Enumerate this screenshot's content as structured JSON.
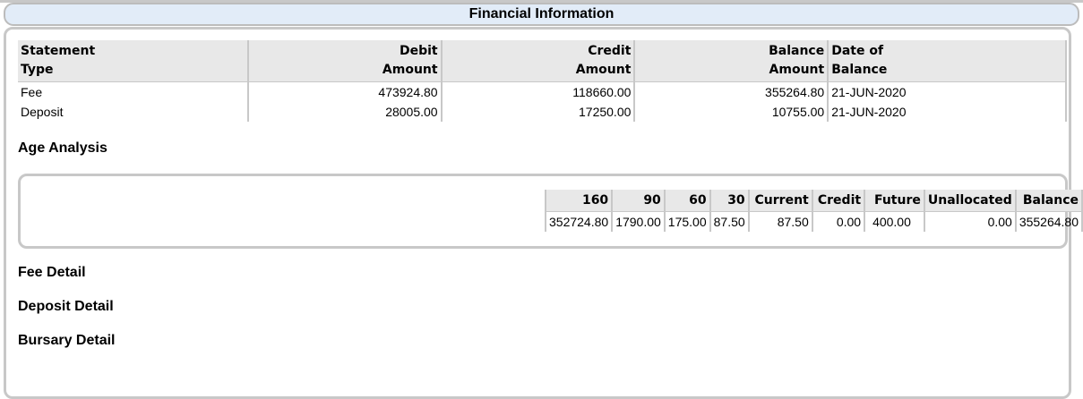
{
  "title": "Financial Information",
  "statement_table": {
    "headers": [
      [
        "Statement",
        "Type"
      ],
      [
        "Debit",
        "Amount"
      ],
      [
        "Credit",
        "Amount"
      ],
      [
        "Balance",
        "Amount"
      ],
      [
        "Date of",
        "Balance"
      ]
    ],
    "rows": [
      [
        "Fee",
        "473924.80",
        "118660.00",
        "355264.80",
        "21-JUN-2020"
      ],
      [
        "Deposit",
        "28005.00",
        "17250.00",
        "10755.00",
        "21-JUN-2020"
      ]
    ]
  },
  "age_analysis": {
    "heading": "Age Analysis",
    "headers": [
      "160",
      "90",
      "60",
      "30",
      "Current",
      "Credit",
      "Future",
      "Unallocated",
      "Balance"
    ],
    "values": [
      "352724.80",
      "1790.00",
      "175.00",
      "87.50",
      "87.50",
      "0.00",
      "400.00",
      "0.00",
      "355264.80"
    ]
  },
  "sections": [
    "Fee Detail",
    "Deposit Detail",
    "Bursary Detail"
  ]
}
